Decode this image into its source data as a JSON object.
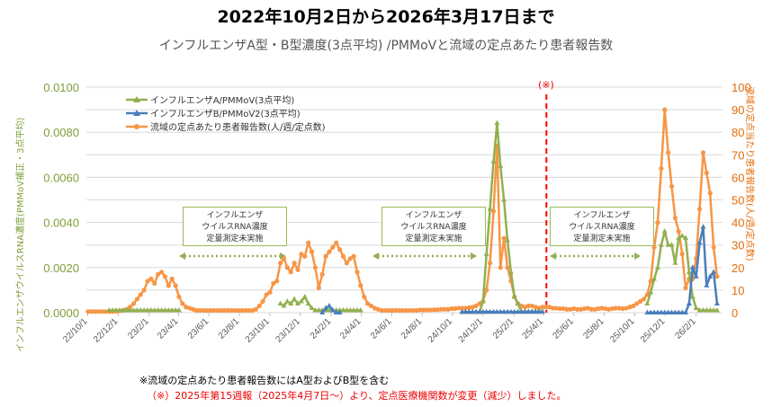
{
  "title": "2022年10月2日から2026年3月17日まで",
  "subtitle": "インフルエンザA型・B型濃度(3点平均) /PMMoVと流域の定点あたり患者報告数",
  "legend": [
    {
      "label": "インフルエンザA/PMMoV(3点平均)",
      "color": "#92b050",
      "marker": "triangle"
    },
    {
      "label": "インフルエンザB/PMMoV2(3点平均)",
      "color": "#4a7ebb",
      "marker": "triangle"
    },
    {
      "label": "流域の定点あたり患者報告数(人/週/定点数)",
      "color": "#f79646",
      "marker": "circle"
    }
  ],
  "not_measured_boxes": [
    {
      "lines": [
        "インフルエンザ",
        "ウイルスRNA濃度",
        "定量測定未実施"
      ]
    },
    {
      "lines": [
        "インフルエンザ",
        "ウイルスRNA濃度",
        "定量測定未実施"
      ]
    },
    {
      "lines": [
        "インフルエンザ",
        "ウイルスRNA濃度",
        "定量測定未実施"
      ]
    }
  ],
  "change_marker": {
    "label": "(※)",
    "date": "2025-04-07",
    "color": "#ff0000"
  },
  "notes": {
    "note1": "※流域の定点あたり患者報告数にはA型およびB型を含む",
    "note2": "（※）2025年第15週報（2025年4月7日～）より、定点医療機関数が変更（減少）しました。"
  },
  "chart_data": {
    "type": "line",
    "title": "インフルエンザA型・B型濃度(3点平均) /PMMoVと流域の定点あたり患者報告数",
    "y_left": {
      "label": "インフルエンザウイルスRNA濃度(PMMoV補正・3点平均)",
      "range": [
        0,
        0.01
      ],
      "ticks": [
        "0.0000",
        "0.0020",
        "0.0040",
        "0.0060",
        "0.0080",
        "0.0100"
      ],
      "color": "#7f9f3a"
    },
    "y_right": {
      "label": "流域の定点当たり患者報告数(人/週/定点数)",
      "range": [
        0,
        100
      ],
      "ticks": [
        "0",
        "10",
        "20",
        "30",
        "40",
        "50",
        "60",
        "70",
        "80",
        "90",
        "100"
      ],
      "color": "#e46c0a"
    },
    "x_range": [
      "2022-10-02",
      "2026-03-15"
    ],
    "x_ticks": [
      "22/10/1",
      "22/12/1",
      "23/2/1",
      "23/4/1",
      "23/6/1",
      "23/8/1",
      "23/10/1",
      "23/12/1",
      "24/2/1",
      "24/4/1",
      "24/6/1",
      "24/8/1",
      "24/10/1",
      "24/12/1",
      "25/2/1",
      "25/4/1",
      "25/6/1",
      "25/8/1",
      "25/10/1",
      "25/12/1",
      "26/2/1"
    ],
    "grid": "horizontal",
    "legend_position": "top-left",
    "x": [
      "2022-10-02",
      "2022-10-09",
      "2022-10-16",
      "2022-10-23",
      "2022-10-30",
      "2022-11-06",
      "2022-11-13",
      "2022-11-20",
      "2022-11-27",
      "2022-12-04",
      "2022-12-11",
      "2022-12-18",
      "2022-12-25",
      "2023-01-01",
      "2023-01-08",
      "2023-01-15",
      "2023-01-22",
      "2023-01-29",
      "2023-02-05",
      "2023-02-12",
      "2023-02-19",
      "2023-02-26",
      "2023-03-05",
      "2023-03-12",
      "2023-03-19",
      "2023-03-26",
      "2023-04-02",
      "2023-04-09",
      "2023-04-16",
      "2023-04-23",
      "2023-04-30",
      "2023-05-07",
      "2023-05-14",
      "2023-05-21",
      "2023-05-28",
      "2023-06-04",
      "2023-06-11",
      "2023-06-18",
      "2023-06-25",
      "2023-07-02",
      "2023-07-09",
      "2023-07-16",
      "2023-07-23",
      "2023-07-30",
      "2023-08-06",
      "2023-08-13",
      "2023-08-20",
      "2023-08-27",
      "2023-09-03",
      "2023-09-10",
      "2023-09-17",
      "2023-09-24",
      "2023-10-01",
      "2023-10-08",
      "2023-10-15",
      "2023-10-22",
      "2023-10-29",
      "2023-11-05",
      "2023-11-12",
      "2023-11-19",
      "2023-11-26",
      "2023-12-03",
      "2023-12-10",
      "2023-12-17",
      "2023-12-24",
      "2023-12-31",
      "2024-01-07",
      "2024-01-14",
      "2024-01-21",
      "2024-01-28",
      "2024-02-04",
      "2024-02-11",
      "2024-02-18",
      "2024-02-25",
      "2024-03-03",
      "2024-03-10",
      "2024-03-17",
      "2024-03-24",
      "2024-03-31",
      "2024-04-07",
      "2024-04-14",
      "2024-04-21",
      "2024-04-28",
      "2024-05-05",
      "2024-05-12",
      "2024-05-19",
      "2024-05-26",
      "2024-06-02",
      "2024-06-09",
      "2024-06-16",
      "2024-06-23",
      "2024-06-30",
      "2024-07-07",
      "2024-07-14",
      "2024-07-21",
      "2024-07-28",
      "2024-08-04",
      "2024-08-11",
      "2024-08-18",
      "2024-08-25",
      "2024-09-01",
      "2024-09-08",
      "2024-09-15",
      "2024-09-22",
      "2024-09-29",
      "2024-10-06",
      "2024-10-13",
      "2024-10-20",
      "2024-10-27",
      "2024-11-03",
      "2024-11-10",
      "2024-11-17",
      "2024-11-24",
      "2024-12-01",
      "2024-12-08",
      "2024-12-15",
      "2024-12-22",
      "2024-12-29",
      "2025-01-05",
      "2025-01-12",
      "2025-01-19",
      "2025-01-26",
      "2025-02-02",
      "2025-02-09",
      "2025-02-16",
      "2025-02-23",
      "2025-03-02",
      "2025-03-09",
      "2025-03-16",
      "2025-03-23",
      "2025-03-30",
      "2025-04-06",
      "2025-04-13",
      "2025-04-20",
      "2025-04-27",
      "2025-05-04",
      "2025-05-11",
      "2025-05-18",
      "2025-05-25",
      "2025-06-01",
      "2025-06-08",
      "2025-06-15",
      "2025-06-22",
      "2025-06-29",
      "2025-07-06",
      "2025-07-13",
      "2025-07-20",
      "2025-07-27",
      "2025-08-03",
      "2025-08-10",
      "2025-08-17",
      "2025-08-24",
      "2025-08-31",
      "2025-09-07",
      "2025-09-14",
      "2025-09-21",
      "2025-09-28",
      "2025-10-05",
      "2025-10-12",
      "2025-10-19",
      "2025-10-26",
      "2025-11-02",
      "2025-11-09",
      "2025-11-16",
      "2025-11-23",
      "2025-11-30",
      "2025-12-07",
      "2025-12-14",
      "2025-12-21",
      "2025-12-28",
      "2026-01-04",
      "2026-01-11",
      "2026-01-18",
      "2026-01-25",
      "2026-02-01",
      "2026-02-08",
      "2026-02-15",
      "2026-02-22",
      "2026-03-01",
      "2026-03-08",
      "2026-03-15"
    ],
    "series": [
      {
        "name": "インフルエンザA/PMMoV(3点平均)",
        "axis": "left",
        "color": "#92b050",
        "marker": "triangle",
        "values": [
          null,
          null,
          null,
          null,
          null,
          null,
          0.0001,
          0.0001,
          0.0001,
          0.0001,
          0.0001,
          0.0001,
          0.0001,
          0.0001,
          0.0001,
          0.0001,
          0.0001,
          0.0001,
          0.0001,
          0.0001,
          0.0001,
          0.0001,
          0.0001,
          0.0001,
          0.0001,
          0.0001,
          0.0001,
          null,
          null,
          null,
          null,
          null,
          null,
          null,
          null,
          null,
          null,
          null,
          null,
          null,
          null,
          null,
          null,
          null,
          null,
          null,
          null,
          null,
          null,
          null,
          null,
          null,
          null,
          null,
          null,
          0.0004,
          0.0003,
          0.0005,
          0.0004,
          0.0006,
          0.0004,
          0.0005,
          0.0007,
          0.0004,
          0.0002,
          0.0001,
          0.0001,
          0.0001,
          0.0001,
          0.0001,
          0.0001,
          0.0001,
          0.0001,
          0.0001,
          0.0001,
          0.0001,
          0.0001,
          0.0001,
          0.0001,
          null,
          null,
          null,
          null,
          null,
          null,
          null,
          null,
          null,
          null,
          null,
          null,
          null,
          null,
          null,
          null,
          null,
          null,
          null,
          null,
          null,
          null,
          null,
          null,
          null,
          null,
          null,
          null,
          2e-05,
          2e-05,
          2e-05,
          2e-05,
          2e-05,
          2e-05,
          0.0005,
          0.0026,
          0.0046,
          0.0067,
          0.0084,
          0.0065,
          0.005,
          0.0032,
          0.0018,
          0.0007,
          0.0004,
          5e-05,
          5e-05,
          5e-05,
          5e-05,
          5e-05,
          5e-05,
          5e-05,
          null,
          null,
          null,
          null,
          null,
          null,
          null,
          null,
          null,
          null,
          null,
          null,
          null,
          null,
          null,
          null,
          null,
          null,
          null,
          null,
          null,
          null,
          null,
          null,
          null,
          null,
          null,
          null,
          null,
          0.0004,
          0.0009,
          0.0015,
          0.002,
          0.003,
          0.0036,
          0.003,
          0.003,
          0.0022,
          0.0033,
          0.0034,
          0.0033,
          0.0018,
          0.0007,
          0.0002,
          0.0001,
          0.0001,
          0.0001,
          0.0001,
          0.0001,
          0.0001
        ]
      },
      {
        "name": "インフルエンザB/PMMoV2(3点平均)",
        "axis": "left",
        "color": "#4a7ebb",
        "marker": "triangle",
        "values": [
          null,
          null,
          null,
          null,
          null,
          null,
          null,
          null,
          null,
          null,
          null,
          null,
          null,
          null,
          null,
          null,
          null,
          null,
          null,
          null,
          null,
          null,
          null,
          null,
          null,
          null,
          null,
          null,
          null,
          null,
          null,
          null,
          null,
          null,
          null,
          null,
          null,
          null,
          null,
          null,
          null,
          null,
          null,
          null,
          null,
          null,
          null,
          null,
          null,
          null,
          null,
          null,
          null,
          null,
          null,
          null,
          null,
          null,
          null,
          null,
          null,
          null,
          null,
          null,
          null,
          null,
          null,
          0,
          0.0002,
          0.0003,
          0.0001,
          0,
          0,
          null,
          null,
          null,
          null,
          null,
          null,
          null,
          null,
          null,
          null,
          null,
          null,
          null,
          null,
          null,
          null,
          null,
          null,
          null,
          null,
          null,
          null,
          null,
          null,
          null,
          null,
          null,
          null,
          null,
          null,
          null,
          null,
          null,
          null,
          3e-05,
          3e-05,
          3e-05,
          3e-05,
          3e-05,
          3e-05,
          3e-05,
          3e-05,
          3e-05,
          3e-05,
          3e-05,
          3e-05,
          3e-05,
          3e-05,
          3e-05,
          3e-05,
          3e-05,
          3e-05,
          3e-05,
          3e-05,
          3e-05,
          3e-05,
          3e-05,
          3e-05,
          null,
          null,
          null,
          null,
          null,
          null,
          null,
          null,
          null,
          null,
          null,
          null,
          null,
          null,
          null,
          null,
          null,
          null,
          null,
          null,
          null,
          null,
          null,
          null,
          null,
          null,
          null,
          null,
          null,
          0,
          0,
          0,
          0,
          0,
          0,
          0,
          0,
          0,
          0,
          0,
          0,
          0.0004,
          0.002,
          0.0016,
          0.0031,
          0.0038,
          0.0012,
          0.0016,
          0.0018,
          0.0004
        ]
      },
      {
        "name": "流域の定点あたり患者報告数(人/週/定点数)",
        "axis": "right",
        "color": "#f79646",
        "marker": "circle",
        "values": [
          0.5,
          0.5,
          0.5,
          0.5,
          0.5,
          0.5,
          0.5,
          0.5,
          0.6,
          0.8,
          1,
          1.5,
          2.5,
          4,
          6,
          8,
          10,
          14,
          15,
          13,
          17,
          18,
          16,
          12,
          15,
          12,
          7,
          4,
          2.5,
          2,
          1.5,
          1,
          1,
          1,
          1,
          1,
          1,
          1,
          1,
          1,
          1,
          1,
          1,
          1,
          1,
          1,
          1,
          1,
          1.5,
          3,
          5,
          8,
          9,
          13,
          14,
          22,
          24,
          20,
          18,
          22,
          19,
          26,
          25,
          31,
          27,
          20,
          11,
          17,
          25,
          27,
          29,
          31,
          28,
          25,
          22,
          24,
          25,
          18,
          12,
          7,
          4,
          3,
          2,
          1.5,
          1,
          1,
          1,
          1,
          1,
          1,
          1,
          1,
          1,
          1,
          1,
          1.2,
          1.2,
          1.2,
          1.2,
          1.3,
          1.3,
          1.5,
          1.5,
          1.5,
          1.8,
          1.8,
          2,
          2,
          2,
          2.2,
          2.5,
          3,
          4,
          5,
          10,
          22,
          45,
          74,
          20,
          33,
          20,
          14,
          7,
          4,
          3,
          2.5,
          3,
          3,
          2.5,
          2,
          2.5,
          2.5,
          2.5,
          2,
          2,
          1.8,
          1.8,
          1.5,
          1.5,
          1.8,
          1.5,
          1.5,
          1.8,
          2,
          1.5,
          1.5,
          1.8,
          2,
          1.8,
          1.5,
          1.8,
          2,
          2,
          1.8,
          2,
          2.5,
          3,
          4,
          5,
          6,
          8,
          14,
          29,
          40,
          64,
          90,
          71,
          56,
          42,
          36,
          26,
          11,
          15,
          15,
          24,
          46,
          71,
          62,
          53,
          29,
          16
        ]
      }
    ]
  }
}
